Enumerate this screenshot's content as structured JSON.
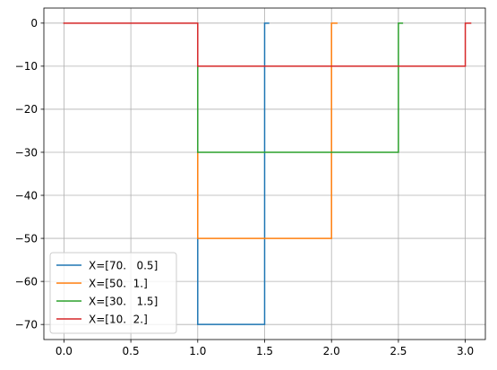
{
  "chart_data": {
    "type": "line",
    "title": "",
    "xlabel": "",
    "ylabel": "",
    "xlim": [
      -0.15,
      3.15
    ],
    "ylim": [
      -73.5,
      3.5
    ],
    "grid": true,
    "legend_position": "lower-left",
    "x_ticks": [
      0.0,
      0.5,
      1.0,
      1.5,
      2.0,
      2.5,
      3.0
    ],
    "x_tick_labels": [
      "0.0",
      "0.5",
      "1.0",
      "1.5",
      "2.0",
      "2.5",
      "3.0"
    ],
    "y_ticks": [
      0,
      -10,
      -20,
      -30,
      -40,
      -50,
      -60,
      -70
    ],
    "y_tick_labels": [
      "0",
      "−10",
      "−20",
      "−30",
      "−40",
      "−50",
      "−60",
      "−70"
    ],
    "series": [
      {
        "name": "X=[70.   0.5]",
        "color": "#1f77b4",
        "x": [
          1.0,
          1.0,
          1.5,
          1.5,
          1.53
        ],
        "y": [
          -50,
          -70,
          -70,
          0,
          0
        ]
      },
      {
        "name": "X=[50.  1.]",
        "color": "#ff7f0e",
        "x": [
          1.0,
          1.0,
          2.0,
          2.0,
          2.04
        ],
        "y": [
          -30,
          -50,
          -50,
          0,
          0
        ]
      },
      {
        "name": "X=[30.   1.5]",
        "color": "#2ca02c",
        "x": [
          1.0,
          1.0,
          2.5,
          2.5,
          2.53
        ],
        "y": [
          -10,
          -30,
          -30,
          0,
          0
        ]
      },
      {
        "name": "X=[10.  2.]",
        "color": "#d62728",
        "x": [
          0.0,
          1.0,
          1.0,
          3.0,
          3.0,
          3.04
        ],
        "y": [
          0,
          0,
          -10,
          -10,
          0,
          0
        ]
      }
    ]
  }
}
